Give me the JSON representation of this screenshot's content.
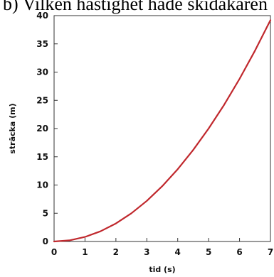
{
  "question": "b) Vilken hastighet hade skidåkaren",
  "chart_data": {
    "type": "line",
    "title": "",
    "xlabel": "tid (s)",
    "ylabel": "sträcka (m)",
    "xlim": [
      0,
      7
    ],
    "ylim": [
      0,
      40
    ],
    "xticks": [
      0,
      1,
      2,
      3,
      4,
      5,
      6,
      7
    ],
    "yticks": [
      0,
      5,
      10,
      15,
      20,
      25,
      30,
      35,
      40
    ],
    "grid": false,
    "series": [
      {
        "color": "#c0282d",
        "x": [
          0,
          0.5,
          1,
          1.5,
          2,
          2.5,
          3,
          3.5,
          4,
          4.5,
          5,
          5.5,
          6,
          6.5,
          7
        ],
        "y": [
          0,
          0.2,
          0.8,
          1.8,
          3.2,
          5.0,
          7.2,
          9.8,
          12.8,
          16.2,
          20.0,
          24.2,
          28.8,
          33.8,
          39.2
        ]
      }
    ]
  }
}
